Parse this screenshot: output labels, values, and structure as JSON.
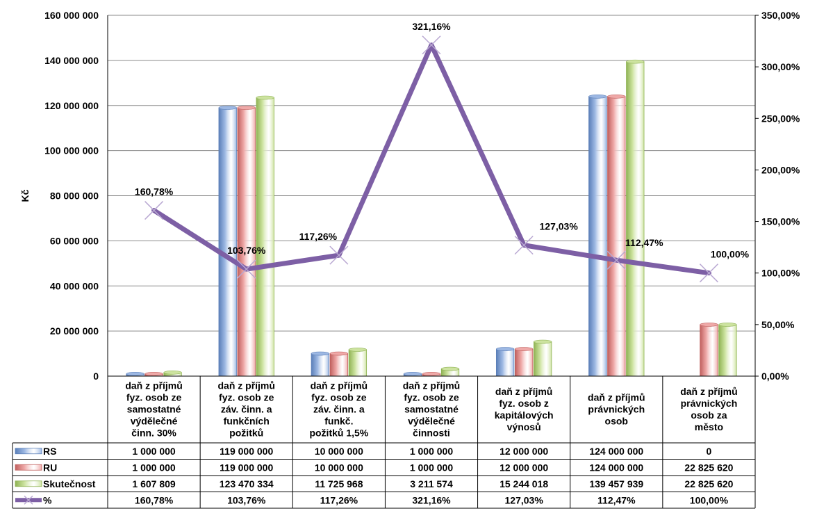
{
  "chart_data": {
    "type": "bar+line",
    "ylabel": "Kč",
    "y_left": {
      "min": 0,
      "max": 160000000,
      "step": 20000000,
      "tick_labels": [
        "0",
        "20 000 000",
        "40 000 000",
        "60 000 000",
        "80 000 000",
        "100 000 000",
        "120 000 000",
        "140 000 000",
        "160 000 000"
      ]
    },
    "y_right": {
      "min": 0,
      "max": 350,
      "step": 50,
      "tick_labels": [
        "0,00%",
        "50,00%",
        "100,00%",
        "150,00%",
        "200,00%",
        "250,00%",
        "300,00%",
        "350,00%"
      ]
    },
    "grid": true,
    "categories": [
      [
        "daň z příjmů",
        "fyz. osob ze",
        "samostatné",
        "výdělečné",
        "činn. 30%"
      ],
      [
        "daň z příjmů",
        "fyz. osob ze",
        "záv. činn. a",
        "funkčních",
        "požitků"
      ],
      [
        "daň z příjmů",
        "fyz. osob ze",
        "záv. činn. a",
        "funkč.",
        "požitků 1,5%"
      ],
      [
        "daň z příjmů",
        "fyz. osob ze",
        "samostatné",
        "výdělečné",
        "činnosti"
      ],
      [
        "daň z příjmů",
        "fyz. osob z",
        "kapitálových",
        "výnosů"
      ],
      [
        "daň z příjmů",
        "právnických",
        "osob"
      ],
      [
        "daň z příjmů",
        "právnických",
        "osob za",
        "město"
      ]
    ],
    "series": [
      {
        "name": "RS",
        "kind": "bar",
        "color": "#9DB8E3",
        "edge": "#5B7FB8",
        "values": [
          1000000,
          119000000,
          10000000,
          1000000,
          12000000,
          124000000,
          0
        ],
        "labels": [
          "1 000 000",
          "119 000 000",
          "10 000 000",
          "1 000 000",
          "12 000 000",
          "124 000 000",
          "0"
        ]
      },
      {
        "name": "RU",
        "kind": "bar",
        "color": "#EFA9A8",
        "edge": "#C0605E",
        "values": [
          1000000,
          119000000,
          10000000,
          1000000,
          12000000,
          124000000,
          22825620
        ],
        "labels": [
          "1 000 000",
          "119 000 000",
          "10 000 000",
          "1 000 000",
          "12 000 000",
          "124 000 000",
          "22 825 620"
        ]
      },
      {
        "name": "Skutečnost",
        "kind": "bar",
        "color": "#CDE3A0",
        "edge": "#8FB354",
        "values": [
          1607809,
          123470334,
          11725968,
          3211574,
          15244018,
          139457939,
          22825620
        ],
        "labels": [
          "1 607 809",
          "123 470 334",
          "11 725 968",
          "3 211 574",
          "15 244 018",
          "139 457 939",
          "22 825 620"
        ]
      },
      {
        "name": "%",
        "kind": "line",
        "axis": "right",
        "color": "#7D5FA5",
        "values": [
          160.78,
          103.76,
          117.26,
          321.16,
          127.03,
          112.47,
          100.0
        ],
        "point_labels": [
          "160,78%",
          "103,76%",
          "117,26%",
          "321,16%",
          "127,03%",
          "112,47%",
          "100,00%"
        ],
        "labels": [
          "160,78%",
          "103,76%",
          "117,26%",
          "321,16%",
          "127,03%",
          "112,47%",
          "100,00%"
        ]
      }
    ]
  }
}
